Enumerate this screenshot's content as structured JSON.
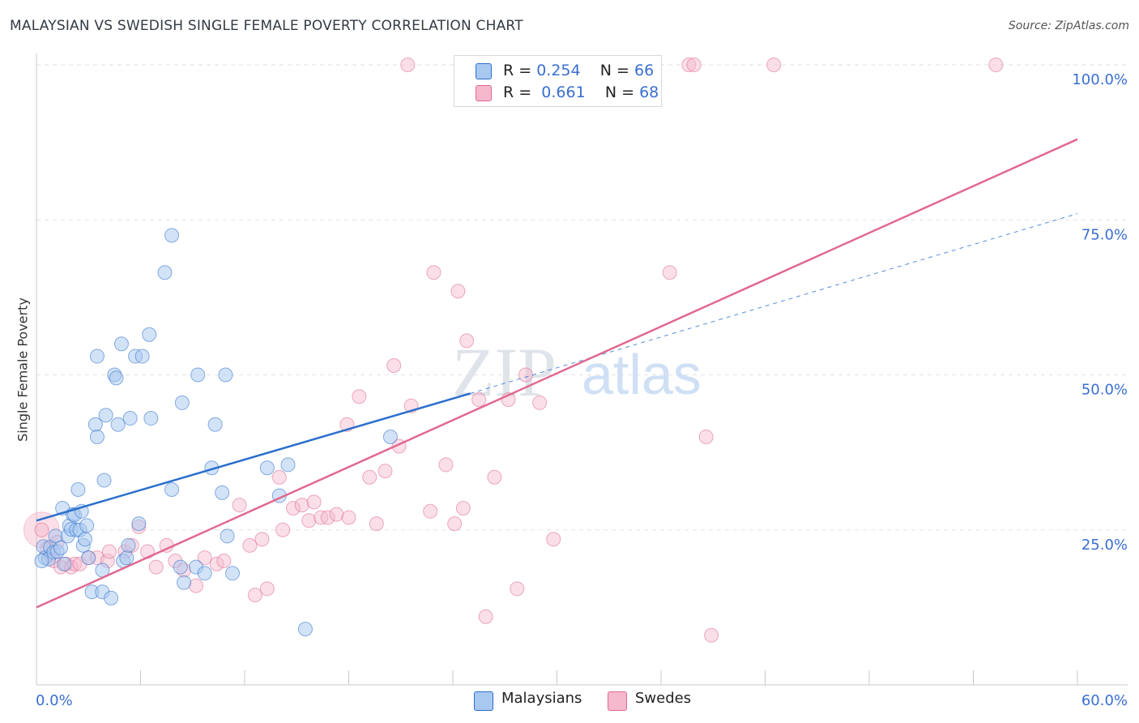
{
  "header": {
    "title": "MALAYSIAN VS SWEDISH SINGLE FEMALE POVERTY CORRELATION CHART",
    "source": "Source: ZipAtlas.com"
  },
  "watermark": {
    "zip": "ZIP",
    "atlas": "atlas"
  },
  "stats": [
    {
      "r_label": "R =",
      "r_value": "0.254",
      "n_label": "N =",
      "n_value": "66",
      "color": "#a8c8f0"
    },
    {
      "r_label": "R =",
      "r_value": "0.661",
      "n_label": "N =",
      "n_value": "68",
      "color": "#f5b8cc"
    }
  ],
  "legend": [
    {
      "label": "Malaysians",
      "color": "#a8c8f0"
    },
    {
      "label": "Swedes",
      "color": "#f5b8cc"
    }
  ],
  "chart_data": {
    "type": "scatter",
    "ylabel": "Single Female Poverty",
    "xlim": [
      0,
      60
    ],
    "ylim": [
      0,
      100
    ],
    "x_tick_labels": [
      "0.0%",
      "60.0%"
    ],
    "y_tick_labels": [
      {
        "value": 25,
        "label": "25.0%"
      },
      {
        "value": 50,
        "label": "50.0%"
      },
      {
        "value": 75,
        "label": "75.0%"
      },
      {
        "value": 100,
        "label": "100.0%"
      }
    ],
    "grid": true,
    "colors": {
      "blue_fill": "#a8c8f0",
      "blue_line": "#2b6fcc",
      "pink_fill": "#f5b8cc",
      "pink_line": "#e0698f"
    },
    "series": [
      {
        "name": "Malaysians",
        "points": [
          [
            0.4,
            22.3
          ],
          [
            0.5,
            20.5
          ],
          [
            0.7,
            20.3
          ],
          [
            0.8,
            22.2
          ],
          [
            1.0,
            21.4
          ],
          [
            1.1,
            24.0
          ],
          [
            1.2,
            21.5
          ],
          [
            1.4,
            22.1
          ],
          [
            1.5,
            28.5
          ],
          [
            1.6,
            19.5
          ],
          [
            1.8,
            24.0
          ],
          [
            1.9,
            25.7
          ],
          [
            2.0,
            25.1
          ],
          [
            2.1,
            27.5
          ],
          [
            2.2,
            27.4
          ],
          [
            2.3,
            25.0
          ],
          [
            2.4,
            31.5
          ],
          [
            2.5,
            25.0
          ],
          [
            2.6,
            28.0
          ],
          [
            2.7,
            22.5
          ],
          [
            2.8,
            23.5
          ],
          [
            2.9,
            25.7
          ],
          [
            3.0,
            20.5
          ],
          [
            3.2,
            15.0
          ],
          [
            3.4,
            42.0
          ],
          [
            3.5,
            53.0
          ],
          [
            3.5,
            40.0
          ],
          [
            3.8,
            15.0
          ],
          [
            3.8,
            18.5
          ],
          [
            3.9,
            33.0
          ],
          [
            4.0,
            43.5
          ],
          [
            4.3,
            14.0
          ],
          [
            4.5,
            50.0
          ],
          [
            4.6,
            49.5
          ],
          [
            4.7,
            42.0
          ],
          [
            4.9,
            55.0
          ],
          [
            5.0,
            20.0
          ],
          [
            5.2,
            20.5
          ],
          [
            5.3,
            22.5
          ],
          [
            5.4,
            43.0
          ],
          [
            5.7,
            53.0
          ],
          [
            5.9,
            26.0
          ],
          [
            6.1,
            53.0
          ],
          [
            6.5,
            56.5
          ],
          [
            6.6,
            43.0
          ],
          [
            7.4,
            66.5
          ],
          [
            7.8,
            72.5
          ],
          [
            7.8,
            31.5
          ],
          [
            8.3,
            19.0
          ],
          [
            8.4,
            45.5
          ],
          [
            8.5,
            16.5
          ],
          [
            9.2,
            19.0
          ],
          [
            9.3,
            50.0
          ],
          [
            9.7,
            18.0
          ],
          [
            10.1,
            35.0
          ],
          [
            10.3,
            42.0
          ],
          [
            10.7,
            31.0
          ],
          [
            10.9,
            50.0
          ],
          [
            11.0,
            24.0
          ],
          [
            13.3,
            35.0
          ],
          [
            14.0,
            30.5
          ],
          [
            14.5,
            35.5
          ],
          [
            15.5,
            9.0
          ],
          [
            20.4,
            40.0
          ],
          [
            11.3,
            18.0
          ],
          [
            0.3,
            20.0
          ]
        ],
        "trend": {
          "x": [
            0,
            25
          ],
          "y": [
            26.5,
            47.0
          ]
        },
        "trend_dashed": {
          "x": [
            25,
            60
          ],
          "y": [
            47.0,
            76.0
          ]
        }
      },
      {
        "name": "Swedes",
        "points": [
          [
            0.3,
            25.0
          ],
          [
            0.6,
            22.0
          ],
          [
            0.8,
            21.0
          ],
          [
            1.0,
            20.0
          ],
          [
            1.2,
            23.0
          ],
          [
            1.4,
            19.0
          ],
          [
            1.7,
            19.5
          ],
          [
            2.0,
            19.0
          ],
          [
            2.2,
            19.5
          ],
          [
            2.5,
            19.5
          ],
          [
            3.0,
            20.5
          ],
          [
            3.5,
            20.5
          ],
          [
            4.1,
            20.0
          ],
          [
            4.2,
            21.5
          ],
          [
            5.1,
            21.5
          ],
          [
            5.5,
            22.5
          ],
          [
            5.9,
            25.5
          ],
          [
            6.4,
            21.5
          ],
          [
            6.9,
            19.0
          ],
          [
            7.5,
            22.5
          ],
          [
            8.0,
            20.0
          ],
          [
            8.5,
            18.5
          ],
          [
            9.2,
            16.0
          ],
          [
            9.7,
            20.5
          ],
          [
            10.4,
            19.5
          ],
          [
            10.8,
            20.0
          ],
          [
            11.7,
            29.0
          ],
          [
            12.3,
            22.5
          ],
          [
            12.6,
            14.5
          ],
          [
            13.0,
            23.5
          ],
          [
            13.3,
            15.5
          ],
          [
            14.0,
            33.5
          ],
          [
            14.2,
            25.0
          ],
          [
            14.8,
            28.5
          ],
          [
            15.3,
            29.0
          ],
          [
            15.7,
            26.5
          ],
          [
            16.0,
            29.5
          ],
          [
            16.4,
            27.0
          ],
          [
            16.8,
            27.0
          ],
          [
            17.3,
            27.5
          ],
          [
            17.9,
            42.0
          ],
          [
            18.0,
            27.0
          ],
          [
            18.6,
            46.5
          ],
          [
            19.2,
            33.5
          ],
          [
            19.6,
            26.0
          ],
          [
            20.1,
            34.5
          ],
          [
            20.6,
            51.5
          ],
          [
            20.9,
            38.5
          ],
          [
            21.4,
            100.0
          ],
          [
            21.6,
            45.0
          ],
          [
            22.7,
            28.0
          ],
          [
            22.9,
            66.5
          ],
          [
            23.6,
            35.5
          ],
          [
            24.1,
            26.0
          ],
          [
            24.3,
            63.5
          ],
          [
            24.6,
            28.5
          ],
          [
            24.8,
            55.5
          ],
          [
            25.5,
            46.0
          ],
          [
            25.9,
            11.0
          ],
          [
            26.4,
            33.5
          ],
          [
            27.2,
            46.0
          ],
          [
            27.7,
            15.5
          ],
          [
            28.2,
            50.0
          ],
          [
            29.0,
            45.5
          ],
          [
            29.8,
            23.5
          ],
          [
            36.5,
            66.5
          ],
          [
            38.9,
            8.0
          ],
          [
            38.6,
            40.0
          ]
        ],
        "extra_points": [
          [
            37.6,
            100.0
          ],
          [
            37.9,
            100.0
          ],
          [
            42.5,
            100.0
          ],
          [
            55.3,
            100.0
          ]
        ],
        "trend": {
          "x": [
            0,
            60
          ],
          "y": [
            12.5,
            88.0
          ]
        }
      }
    ]
  }
}
